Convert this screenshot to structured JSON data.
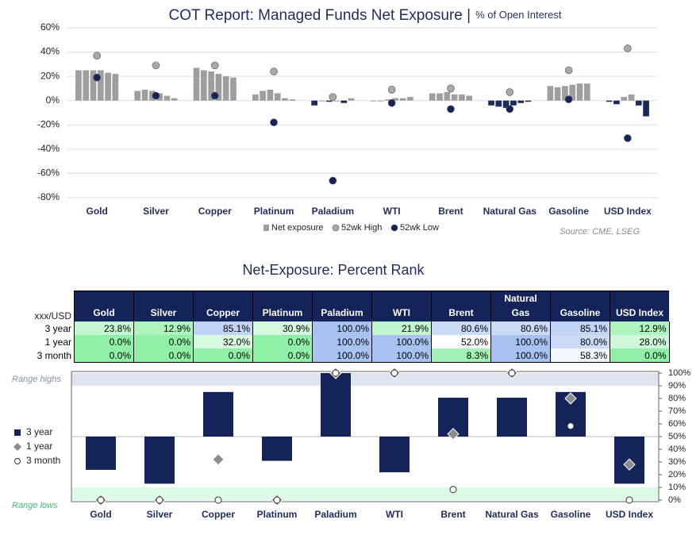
{
  "chart_data": [
    {
      "type": "bar",
      "title": "COT Report: Managed Funds Net Exposure |",
      "subtitle": "% of Open Interest",
      "categories": [
        "Gold",
        "Silver",
        "Copper",
        "Platinum",
        "Paladium",
        "WTI",
        "Brent",
        "Natural Gas",
        "Gasoline",
        "USD Index"
      ],
      "series": [
        {
          "name": "Net exposure",
          "color": "#9e9e9e",
          "negative_color": "#1b2a5e",
          "values": [
            [
              25,
              25,
              25,
              25,
              23,
              22
            ],
            [
              8,
              9,
              8,
              6,
              4,
              2
            ],
            [
              27,
              25,
              24,
              22,
              20,
              19
            ],
            [
              5,
              8,
              9,
              6,
              2,
              1
            ],
            [
              -4,
              0,
              -1,
              0,
              -2,
              2
            ],
            [
              0,
              0,
              1,
              2,
              2,
              3
            ],
            [
              6,
              6,
              7,
              5,
              5,
              4
            ],
            [
              -4,
              -5,
              -6,
              -4,
              -2,
              -1
            ],
            [
              12,
              11,
              12,
              13,
              14,
              14
            ],
            [
              -1,
              -3,
              3,
              5,
              -4,
              -13
            ]
          ]
        },
        {
          "name": "52wk High",
          "color": "#a8a8a8",
          "values": [
            37,
            29,
            29,
            24,
            3,
            9,
            10,
            7,
            25,
            43
          ]
        },
        {
          "name": "52wk Low",
          "color": "#14245a",
          "values": [
            19,
            4,
            4,
            -18,
            -66,
            -2,
            -7,
            -7,
            1,
            -31
          ]
        }
      ],
      "ylim": [
        -80,
        60
      ],
      "yticks": [
        {
          "value": -80,
          "label": "-80%"
        },
        {
          "value": -60,
          "label": "-60%"
        },
        {
          "value": -40,
          "label": "-40%"
        },
        {
          "value": -20,
          "label": "-20%"
        },
        {
          "value": 0,
          "label": "0%"
        },
        {
          "value": 20,
          "label": "20%"
        },
        {
          "value": 40,
          "label": "40%"
        },
        {
          "value": 60,
          "label": "60%"
        }
      ],
      "grid": true,
      "source": "Source: CME, LSEG"
    },
    {
      "type": "rank",
      "title": "Net-Exposure: Percent Rank",
      "corner_label": "xxx/USD",
      "categories": [
        "Gold",
        "Silver",
        "Copper",
        "Platinum",
        "Paladium",
        "WTI",
        "Brent",
        "Natural Gas",
        "Gasoline",
        "USD Index"
      ],
      "series": [
        {
          "name": "3 year",
          "color": "#14245a",
          "marker": "bar",
          "values": [
            23.8,
            12.9,
            85.1,
            30.9,
            100,
            21.9,
            80.6,
            80.6,
            85.1,
            12.9
          ],
          "value_labels": [
            "23.8%",
            "12.9%",
            "85.1%",
            "30.9%",
            "100.0%",
            "21.9%",
            "80.6%",
            "80.6%",
            "85.1%",
            "12.9%"
          ]
        },
        {
          "name": "1 year",
          "color": "#8c8c8c",
          "marker": "diamond",
          "values": [
            0,
            0,
            32,
            0,
            100,
            100,
            52,
            100,
            80,
            28
          ],
          "value_labels": [
            "0.0%",
            "0.0%",
            "32.0%",
            "0.0%",
            "100.0%",
            "100.0%",
            "52.0%",
            "100.0%",
            "80.0%",
            "28.0%"
          ]
        },
        {
          "name": "3 month",
          "color": "#ffffff",
          "marker": "circle",
          "values": [
            0,
            0,
            0,
            0,
            100,
            100,
            8.3,
            100,
            58.3,
            0
          ],
          "value_labels": [
            "0.0%",
            "0.0%",
            "0.0%",
            "0.0%",
            "100.0%",
            "100.0%",
            "8.3%",
            "100.0%",
            "58.3%",
            "0.0%"
          ]
        }
      ],
      "bar_base": 50,
      "bands": [
        {
          "label": "Range highs",
          "from": 90,
          "to": 100,
          "color": "#dfe4f0"
        },
        {
          "label": "Range lows",
          "from": 0,
          "to": 10,
          "color": "#dcfbe6"
        }
      ],
      "ylim": [
        0,
        100
      ],
      "yticks": [
        {
          "value": 0,
          "label": "0%"
        },
        {
          "value": 10,
          "label": "10%"
        },
        {
          "value": 20,
          "label": "20%"
        },
        {
          "value": 30,
          "label": "30%"
        },
        {
          "value": 40,
          "label": "40%"
        },
        {
          "value": 50,
          "label": "50%"
        },
        {
          "value": 60,
          "label": "60%"
        },
        {
          "value": 70,
          "label": "70%"
        },
        {
          "value": 80,
          "label": "80%"
        },
        {
          "value": 90,
          "label": "90%"
        },
        {
          "value": 100,
          "label": "100%"
        }
      ]
    }
  ]
}
